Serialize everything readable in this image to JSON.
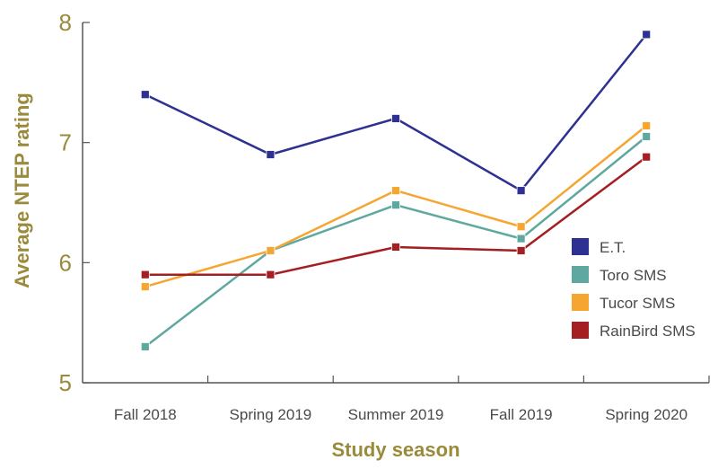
{
  "chart_data": {
    "type": "line",
    "title": "",
    "xlabel": "Study season",
    "ylabel": "Average NTEP rating",
    "categories": [
      "Fall 2018",
      "Spring 2019",
      "Summer 2019",
      "Fall 2019",
      "Spring 2020"
    ],
    "ylim": [
      5,
      8
    ],
    "yticks": [
      "5",
      "6",
      "7",
      "8"
    ],
    "grid": false,
    "legend_position": "right",
    "series": [
      {
        "name": "E.T.",
        "color": "#2e3192",
        "values": [
          7.4,
          6.9,
          7.2,
          6.6,
          7.9
        ]
      },
      {
        "name": "Toro SMS",
        "color": "#5fa8a0",
        "values": [
          5.3,
          6.1,
          6.48,
          6.2,
          7.05
        ]
      },
      {
        "name": "Tucor SMS",
        "color": "#f5a631",
        "values": [
          5.8,
          6.1,
          6.6,
          6.3,
          7.14
        ]
      },
      {
        "name": "RainBird SMS",
        "color": "#a41e22",
        "values": [
          5.9,
          5.9,
          6.13,
          6.1,
          6.88
        ]
      }
    ]
  }
}
